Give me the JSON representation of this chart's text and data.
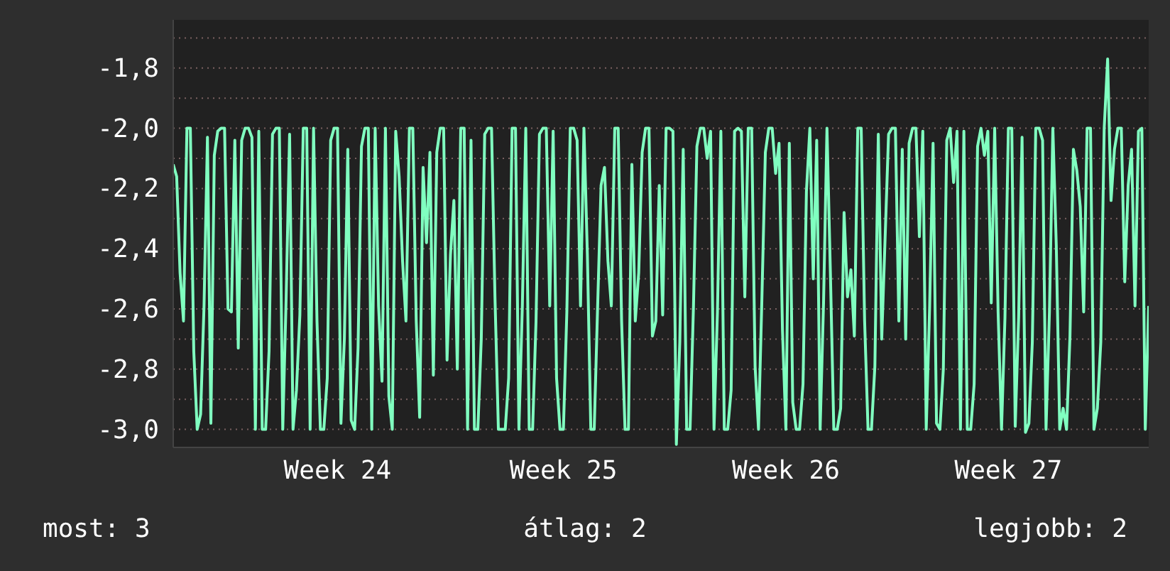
{
  "chart_data": {
    "type": "line",
    "color": "#80ffc0",
    "grid": "y",
    "marker": "none",
    "line_style": "solid",
    "ylim": [
      -3.06,
      -1.64
    ],
    "yticks": [
      {
        "value": -3.0,
        "label": "-3,0"
      },
      {
        "value": -2.9,
        "label": null
      },
      {
        "value": -2.8,
        "label": "-2,8"
      },
      {
        "value": -2.7,
        "label": null
      },
      {
        "value": -2.6,
        "label": "-2,6"
      },
      {
        "value": -2.5,
        "label": null
      },
      {
        "value": -2.4,
        "label": "-2,4"
      },
      {
        "value": -2.3,
        "label": null
      },
      {
        "value": -2.2,
        "label": "-2,2"
      },
      {
        "value": -2.1,
        "label": null
      },
      {
        "value": -2.0,
        "label": "-2,0"
      },
      {
        "value": -1.9,
        "label": null
      },
      {
        "value": -1.8,
        "label": "-1,8"
      },
      {
        "value": -1.7,
        "label": null
      }
    ],
    "annotations": [
      "most: 3",
      "átlag: 2",
      "legjobb: 2"
    ],
    "categories": [
      null,
      null,
      null,
      null,
      null,
      null,
      null,
      null,
      null,
      null,
      null,
      null,
      null,
      null,
      null,
      null,
      null,
      null,
      null,
      null,
      null,
      null,
      null,
      null,
      null,
      null,
      null,
      null,
      null,
      null,
      null,
      null,
      null,
      null,
      null,
      null,
      null,
      null,
      null,
      null,
      null,
      null,
      null,
      null,
      null,
      null,
      null,
      null,
      "Week 24",
      null,
      null,
      null,
      null,
      null,
      null,
      null,
      null,
      null,
      null,
      null,
      null,
      null,
      null,
      null,
      null,
      null,
      null,
      null,
      null,
      null,
      null,
      null,
      null,
      null,
      null,
      null,
      null,
      null,
      null,
      null,
      null,
      null,
      null,
      null,
      null,
      null,
      null,
      null,
      null,
      null,
      null,
      null,
      null,
      null,
      null,
      null,
      null,
      null,
      null,
      null,
      null,
      null,
      null,
      null,
      null,
      null,
      null,
      null,
      null,
      null,
      null,
      null,
      null,
      null,
      "Week 25",
      null,
      null,
      null,
      null,
      null,
      null,
      null,
      null,
      null,
      null,
      null,
      null,
      null,
      null,
      null,
      null,
      null,
      null,
      null,
      null,
      null,
      null,
      null,
      null,
      null,
      null,
      null,
      null,
      null,
      null,
      null,
      null,
      null,
      null,
      null,
      null,
      null,
      null,
      null,
      null,
      null,
      null,
      null,
      null,
      null,
      null,
      null,
      null,
      null,
      null,
      null,
      null,
      null,
      null,
      null,
      null,
      null,
      null,
      null,
      null,
      null,
      null,
      null,
      null,
      "Week 26",
      null,
      null,
      null,
      null,
      null,
      null,
      null,
      null,
      null,
      null,
      null,
      null,
      null,
      null,
      null,
      null,
      null,
      null,
      null,
      null,
      null,
      null,
      null,
      null,
      null,
      null,
      null,
      null,
      null,
      null,
      null,
      null,
      null,
      null,
      null,
      null,
      null,
      null,
      null,
      null,
      null,
      null,
      null,
      null,
      null,
      null,
      null,
      null,
      null,
      null,
      null,
      null,
      null,
      null,
      null,
      null,
      null,
      null,
      null,
      null,
      null,
      null,
      null,
      null,
      "Week 27",
      null,
      null,
      null,
      null,
      null,
      null,
      null,
      null,
      null,
      null,
      null,
      null,
      null,
      null,
      null,
      null,
      null,
      null,
      null,
      null,
      null,
      null,
      null,
      null,
      null,
      null,
      null,
      null,
      null,
      null,
      null,
      null,
      null,
      null,
      null,
      null,
      null,
      null,
      null,
      null,
      null
    ],
    "values": [
      -2.12,
      -2.16,
      -2.48,
      -2.64,
      -2.0,
      -2.0,
      -2.74,
      -3.0,
      -2.95,
      -2.59,
      -2.03,
      -2.98,
      -2.09,
      -2.01,
      -2.0,
      -2.0,
      -2.6,
      -2.61,
      -2.04,
      -2.73,
      -2.04,
      -2.0,
      -2.0,
      -2.03,
      -3.0,
      -2.01,
      -3.0,
      -3.0,
      -2.74,
      -2.02,
      -2.0,
      -2.0,
      -3.0,
      -2.56,
      -2.02,
      -3.0,
      -2.87,
      -2.62,
      -2.0,
      -2.0,
      -3.0,
      -2.0,
      -2.64,
      -3.0,
      -3.0,
      -2.83,
      -2.04,
      -2.0,
      -2.0,
      -2.98,
      -2.7,
      -2.07,
      -2.97,
      -3.0,
      -2.73,
      -2.06,
      -2.0,
      -2.0,
      -3.0,
      -2.0,
      -2.59,
      -2.84,
      -2.0,
      -2.89,
      -3.0,
      -2.01,
      -2.16,
      -2.44,
      -2.64,
      -2.0,
      -2.0,
      -2.64,
      -2.96,
      -2.13,
      -2.38,
      -2.08,
      -2.82,
      -2.08,
      -2.0,
      -2.0,
      -2.77,
      -2.42,
      -2.24,
      -2.8,
      -2.0,
      -2.0,
      -3.0,
      -2.04,
      -3.0,
      -3.0,
      -2.7,
      -2.02,
      -2.0,
      -2.0,
      -2.56,
      -3.0,
      -3.0,
      -3.0,
      -2.83,
      -2.0,
      -2.0,
      -3.0,
      -2.59,
      -2.0,
      -3.0,
      -3.0,
      -2.64,
      -2.02,
      -2.0,
      -2.0,
      -2.59,
      -2.01,
      -2.83,
      -3.0,
      -3.0,
      -2.61,
      -2.0,
      -2.0,
      -2.04,
      -2.59,
      -2.0,
      -2.42,
      -3.0,
      -3.0,
      -2.59,
      -2.19,
      -2.13,
      -2.44,
      -2.59,
      -2.0,
      -2.0,
      -2.64,
      -3.0,
      -3.0,
      -2.12,
      -2.64,
      -2.48,
      -2.08,
      -2.0,
      -2.0,
      -2.69,
      -2.64,
      -2.19,
      -2.62,
      -2.0,
      -2.0,
      -2.01,
      -3.05,
      -2.71,
      -2.07,
      -3.0,
      -3.0,
      -2.59,
      -2.06,
      -2.0,
      -2.0,
      -2.1,
      -2.01,
      -3.0,
      -2.61,
      -2.01,
      -3.0,
      -3.0,
      -2.87,
      -2.01,
      -2.0,
      -2.01,
      -2.56,
      -2.0,
      -2.0,
      -2.79,
      -3.0,
      -2.56,
      -2.08,
      -2.0,
      -2.0,
      -2.15,
      -2.05,
      -2.67,
      -3.0,
      -2.05,
      -2.91,
      -3.0,
      -3.0,
      -2.85,
      -2.21,
      -2.0,
      -2.5,
      -2.04,
      -3.0,
      -2.58,
      -2.0,
      -2.48,
      -3.0,
      -3.0,
      -2.93,
      -2.28,
      -2.56,
      -2.47,
      -2.69,
      -2.0,
      -2.0,
      -2.64,
      -3.0,
      -3.0,
      -2.79,
      -2.02,
      -2.7,
      -2.36,
      -2.02,
      -2.0,
      -2.0,
      -2.64,
      -2.07,
      -2.7,
      -2.05,
      -2.0,
      -2.0,
      -2.36,
      -2.01,
      -3.0,
      -2.59,
      -2.05,
      -2.98,
      -3.0,
      -2.8,
      -2.04,
      -2.0,
      -2.18,
      -2.01,
      -3.0,
      -2.01,
      -3.0,
      -3.0,
      -2.85,
      -2.06,
      -2.0,
      -2.09,
      -2.01,
      -2.58,
      -2.0,
      -2.61,
      -3.0,
      -2.63,
      -2.0,
      -2.0,
      -2.99,
      -2.63,
      -2.03,
      -3.01,
      -2.98,
      -2.71,
      -2.0,
      -2.0,
      -2.04,
      -3.0,
      -2.61,
      -2.0,
      -2.39,
      -3.0,
      -2.93,
      -3.0,
      -2.69,
      -2.07,
      -2.14,
      -2.26,
      -2.61,
      -2.0,
      -2.0,
      -3.0,
      -2.93,
      -2.71,
      -2.0,
      -1.77,
      -2.24,
      -2.07,
      -2.0,
      -2.0,
      -2.51,
      -2.19,
      -2.07,
      -2.59,
      -2.01,
      -2.0,
      -3.0,
      -2.59
    ]
  }
}
